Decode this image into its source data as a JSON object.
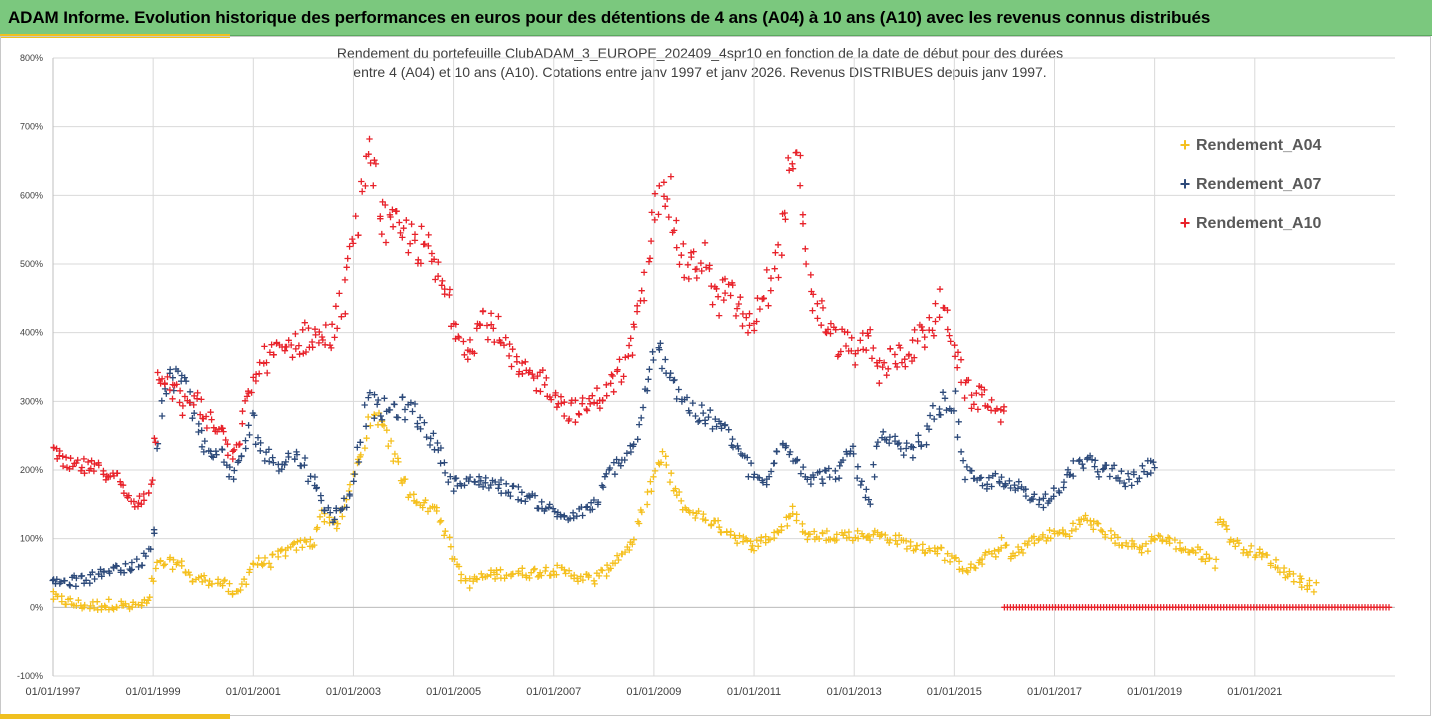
{
  "banner": {
    "title": "ADAM Informe. Evolution historique des performances en euros pour des détentions de 4 ans (A04) à 10 ans (A10) avec les revenus connus distribués"
  },
  "colors": {
    "banner_bg": "#7bc87e",
    "accent": "#f0c020",
    "A04": "#f5c01e",
    "A07": "#2d4a7a",
    "A10": "#e8222a"
  },
  "chart_data": {
    "type": "scatter",
    "title_line1": "Rendement du portefeuille ClubADAM_3_EUROPE_202409_4spr10  en fonction de la date de début pour des durées",
    "title_line2": "entre 4 (A04) et 10 ans (A10). Cotations entre janv 1997 et janv 2026. Revenus DISTRIBUES depuis janv 1997.",
    "xlabel": "",
    "ylabel": "",
    "x_range": [
      1997.0,
      2023.8
    ],
    "ylim": [
      -100,
      800
    ],
    "y_ticks": [
      -100,
      0,
      100,
      200,
      300,
      400,
      500,
      600,
      700,
      800
    ],
    "y_tick_labels": [
      "-100%",
      "0%",
      "100%",
      "200%",
      "300%",
      "400%",
      "500%",
      "600%",
      "700%",
      "800%"
    ],
    "x_ticks": [
      1997,
      1999,
      2001,
      2003,
      2005,
      2007,
      2009,
      2011,
      2013,
      2015,
      2017,
      2019,
      2021
    ],
    "x_tick_labels": [
      "01/01/1997",
      "01/01/1999",
      "01/01/2001",
      "01/01/2003",
      "01/01/2005",
      "01/01/2007",
      "01/01/2009",
      "01/01/2011",
      "01/01/2013",
      "01/01/2015",
      "01/01/2017",
      "01/01/2019",
      "01/01/2021"
    ],
    "grid": true,
    "legend_position": "right",
    "series": [
      {
        "name": "Rendement_A04",
        "color": "#f5c01e",
        "x_start": 1997.0,
        "x_end": 2022.2,
        "step": 0.08,
        "keypoints": [
          [
            1997.0,
            15
          ],
          [
            1997.4,
            5
          ],
          [
            1997.8,
            2
          ],
          [
            1998.2,
            5
          ],
          [
            1998.6,
            0
          ],
          [
            1998.8,
            5
          ],
          [
            1998.95,
            10
          ],
          [
            1999.05,
            60
          ],
          [
            1999.3,
            65
          ],
          [
            1999.6,
            60
          ],
          [
            1999.8,
            40
          ],
          [
            2000.2,
            40
          ],
          [
            2000.5,
            30
          ],
          [
            2000.6,
            15
          ],
          [
            2000.8,
            35
          ],
          [
            2001.0,
            65
          ],
          [
            2001.3,
            65
          ],
          [
            2001.6,
            80
          ],
          [
            2001.9,
            90
          ],
          [
            2002.2,
            95
          ],
          [
            2002.35,
            135
          ],
          [
            2002.5,
            130
          ],
          [
            2002.7,
            120
          ],
          [
            2002.9,
            165
          ],
          [
            2003.1,
            215
          ],
          [
            2003.3,
            260
          ],
          [
            2003.5,
            280
          ],
          [
            2003.7,
            250
          ],
          [
            2003.9,
            200
          ],
          [
            2004.1,
            170
          ],
          [
            2004.4,
            150
          ],
          [
            2004.7,
            140
          ],
          [
            2004.9,
            100
          ],
          [
            2005.1,
            50
          ],
          [
            2005.3,
            35
          ],
          [
            2005.6,
            45
          ],
          [
            2006.0,
            50
          ],
          [
            2006.5,
            50
          ],
          [
            2007.0,
            55
          ],
          [
            2007.5,
            45
          ],
          [
            2007.8,
            40
          ],
          [
            2008.0,
            50
          ],
          [
            2008.3,
            75
          ],
          [
            2008.6,
            95
          ],
          [
            2008.8,
            150
          ],
          [
            2009.0,
            195
          ],
          [
            2009.2,
            220
          ],
          [
            2009.4,
            170
          ],
          [
            2009.6,
            145
          ],
          [
            2010.0,
            130
          ],
          [
            2010.5,
            110
          ],
          [
            2010.8,
            95
          ],
          [
            2011.0,
            90
          ],
          [
            2011.5,
            110
          ],
          [
            2011.8,
            140
          ],
          [
            2011.95,
            120
          ],
          [
            2012.0,
            105
          ],
          [
            2012.5,
            105
          ],
          [
            2013.0,
            105
          ],
          [
            2013.5,
            105
          ],
          [
            2013.8,
            100
          ],
          [
            2014.3,
            85
          ],
          [
            2014.7,
            85
          ],
          [
            2015.0,
            65
          ],
          [
            2015.3,
            55
          ],
          [
            2015.6,
            70
          ],
          [
            2015.9,
            85
          ],
          [
            2016.0,
            100
          ],
          [
            2016.1,
            70
          ],
          [
            2016.5,
            95
          ],
          [
            2016.9,
            105
          ],
          [
            2017.3,
            110
          ],
          [
            2017.6,
            130
          ],
          [
            2018.0,
            110
          ],
          [
            2018.2,
            100
          ],
          [
            2018.5,
            90
          ],
          [
            2018.8,
            85
          ],
          [
            2019.0,
            105
          ],
          [
            2019.3,
            95
          ],
          [
            2019.6,
            85
          ],
          [
            2019.9,
            80
          ],
          [
            2020.2,
            65
          ],
          [
            2020.3,
            140
          ],
          [
            2020.5,
            100
          ],
          [
            2020.8,
            85
          ],
          [
            2021.0,
            80
          ],
          [
            2021.3,
            70
          ],
          [
            2021.5,
            55
          ],
          [
            2021.8,
            45
          ],
          [
            2022.0,
            35
          ],
          [
            2022.2,
            30
          ]
        ]
      },
      {
        "name": "Rendement_A07",
        "color": "#2d4a7a",
        "x_start": 1997.0,
        "x_end": 2019.0,
        "step": 0.08,
        "keypoints": [
          [
            1997.0,
            40
          ],
          [
            1997.5,
            38
          ],
          [
            1997.9,
            45
          ],
          [
            1998.2,
            60
          ],
          [
            1998.5,
            55
          ],
          [
            1998.8,
            70
          ],
          [
            1998.95,
            95
          ],
          [
            1999.0,
            110
          ],
          [
            1999.1,
            280
          ],
          [
            1999.3,
            330
          ],
          [
            1999.5,
            340
          ],
          [
            1999.7,
            310
          ],
          [
            1999.9,
            260
          ],
          [
            2000.1,
            220
          ],
          [
            2000.3,
            230
          ],
          [
            2000.6,
            190
          ],
          [
            2000.9,
            250
          ],
          [
            2001.0,
            270
          ],
          [
            2001.2,
            225
          ],
          [
            2001.5,
            210
          ],
          [
            2001.8,
            220
          ],
          [
            2002.0,
            215
          ],
          [
            2002.3,
            165
          ],
          [
            2002.6,
            130
          ],
          [
            2002.9,
            160
          ],
          [
            2003.1,
            230
          ],
          [
            2003.3,
            300
          ],
          [
            2003.5,
            285
          ],
          [
            2003.8,
            290
          ],
          [
            2004.1,
            290
          ],
          [
            2004.4,
            265
          ],
          [
            2004.6,
            240
          ],
          [
            2004.8,
            215
          ],
          [
            2005.0,
            180
          ],
          [
            2005.3,
            180
          ],
          [
            2005.6,
            185
          ],
          [
            2006.0,
            175
          ],
          [
            2006.5,
            160
          ],
          [
            2007.0,
            140
          ],
          [
            2007.3,
            130
          ],
          [
            2007.6,
            140
          ],
          [
            2007.9,
            155
          ],
          [
            2008.1,
            200
          ],
          [
            2008.4,
            215
          ],
          [
            2008.6,
            235
          ],
          [
            2008.8,
            290
          ],
          [
            2009.0,
            360
          ],
          [
            2009.2,
            370
          ],
          [
            2009.4,
            330
          ],
          [
            2009.6,
            300
          ],
          [
            2009.9,
            280
          ],
          [
            2010.2,
            270
          ],
          [
            2010.5,
            250
          ],
          [
            2010.8,
            220
          ],
          [
            2011.0,
            185
          ],
          [
            2011.3,
            185
          ],
          [
            2011.6,
            250
          ],
          [
            2011.9,
            210
          ],
          [
            2012.1,
            190
          ],
          [
            2012.4,
            190
          ],
          [
            2012.7,
            200
          ],
          [
            2013.0,
            230
          ],
          [
            2013.1,
            190
          ],
          [
            2013.3,
            150
          ],
          [
            2013.5,
            245
          ],
          [
            2013.8,
            235
          ],
          [
            2014.1,
            225
          ],
          [
            2014.4,
            245
          ],
          [
            2014.7,
            295
          ],
          [
            2015.0,
            300
          ],
          [
            2015.1,
            250
          ],
          [
            2015.2,
            195
          ],
          [
            2015.5,
            180
          ],
          [
            2015.8,
            185
          ],
          [
            2016.1,
            175
          ],
          [
            2016.4,
            175
          ],
          [
            2016.7,
            150
          ],
          [
            2017.0,
            170
          ],
          [
            2017.3,
            195
          ],
          [
            2017.6,
            215
          ],
          [
            2017.9,
            200
          ],
          [
            2018.2,
            200
          ],
          [
            2018.5,
            180
          ],
          [
            2018.8,
            200
          ],
          [
            2019.0,
            210
          ]
        ]
      },
      {
        "name": "Rendement_A10",
        "color": "#e8222a",
        "x_start": 1997.0,
        "x_end": 2016.0,
        "step": 0.07,
        "keypoints": [
          [
            1997.0,
            225
          ],
          [
            1997.3,
            205
          ],
          [
            1997.6,
            205
          ],
          [
            1997.9,
            200
          ],
          [
            1998.2,
            195
          ],
          [
            1998.4,
            170
          ],
          [
            1998.6,
            150
          ],
          [
            1998.8,
            160
          ],
          [
            1999.0,
            190
          ],
          [
            1999.1,
            350
          ],
          [
            1999.3,
            330
          ],
          [
            1999.6,
            290
          ],
          [
            1999.8,
            310
          ],
          [
            2000.0,
            280
          ],
          [
            2000.2,
            265
          ],
          [
            2000.4,
            250
          ],
          [
            2000.6,
            210
          ],
          [
            2000.8,
            280
          ],
          [
            2001.0,
            330
          ],
          [
            2001.2,
            360
          ],
          [
            2001.5,
            370
          ],
          [
            2001.8,
            385
          ],
          [
            2002.1,
            395
          ],
          [
            2002.4,
            390
          ],
          [
            2002.6,
            400
          ],
          [
            2002.8,
            450
          ],
          [
            2003.0,
            540
          ],
          [
            2003.2,
            600
          ],
          [
            2003.3,
            680
          ],
          [
            2003.45,
            620
          ],
          [
            2003.6,
            555
          ],
          [
            2003.9,
            545
          ],
          [
            2004.2,
            535
          ],
          [
            2004.5,
            515
          ],
          [
            2004.7,
            480
          ],
          [
            2004.9,
            450
          ],
          [
            2005.1,
            400
          ],
          [
            2005.3,
            380
          ],
          [
            2005.6,
            420
          ],
          [
            2005.9,
            400
          ],
          [
            2006.2,
            350
          ],
          [
            2006.5,
            335
          ],
          [
            2006.8,
            330
          ],
          [
            2007.0,
            315
          ],
          [
            2007.2,
            290
          ],
          [
            2007.5,
            285
          ],
          [
            2007.8,
            300
          ],
          [
            2008.1,
            320
          ],
          [
            2008.4,
            350
          ],
          [
            2008.6,
            390
          ],
          [
            2008.8,
            450
          ],
          [
            2008.95,
            540
          ],
          [
            2009.1,
            600
          ],
          [
            2009.2,
            640
          ],
          [
            2009.4,
            560
          ],
          [
            2009.6,
            500
          ],
          [
            2009.8,
            490
          ],
          [
            2010.0,
            520
          ],
          [
            2010.2,
            440
          ],
          [
            2010.4,
            460
          ],
          [
            2010.7,
            440
          ],
          [
            2010.9,
            400
          ],
          [
            2011.1,
            440
          ],
          [
            2011.3,
            470
          ],
          [
            2011.5,
            510
          ],
          [
            2011.7,
            620
          ],
          [
            2011.9,
            640
          ],
          [
            2012.0,
            560
          ],
          [
            2012.1,
            470
          ],
          [
            2012.3,
            430
          ],
          [
            2012.6,
            390
          ],
          [
            2012.9,
            380
          ],
          [
            2013.1,
            370
          ],
          [
            2013.3,
            390
          ],
          [
            2013.5,
            340
          ],
          [
            2013.7,
            360
          ],
          [
            2014.0,
            370
          ],
          [
            2014.3,
            390
          ],
          [
            2014.5,
            400
          ],
          [
            2014.7,
            440
          ],
          [
            2014.9,
            410
          ],
          [
            2015.0,
            380
          ],
          [
            2015.2,
            320
          ],
          [
            2015.4,
            300
          ],
          [
            2015.6,
            310
          ],
          [
            2015.8,
            290
          ],
          [
            2016.0,
            280
          ]
        ]
      }
    ],
    "zero_series": {
      "name": "Rendement_A10",
      "color": "#e8222a",
      "value": 0,
      "x_start": 2016.0,
      "x_end": 2023.7,
      "step": 0.06
    }
  },
  "legend": {
    "items": [
      {
        "label": "Rendement_A04",
        "marker": "+",
        "color": "#f5c01e"
      },
      {
        "label": "Rendement_A07",
        "marker": "+",
        "color": "#2d4a7a"
      },
      {
        "label": "Rendement_A10",
        "marker": "+",
        "color": "#e8222a"
      }
    ]
  }
}
